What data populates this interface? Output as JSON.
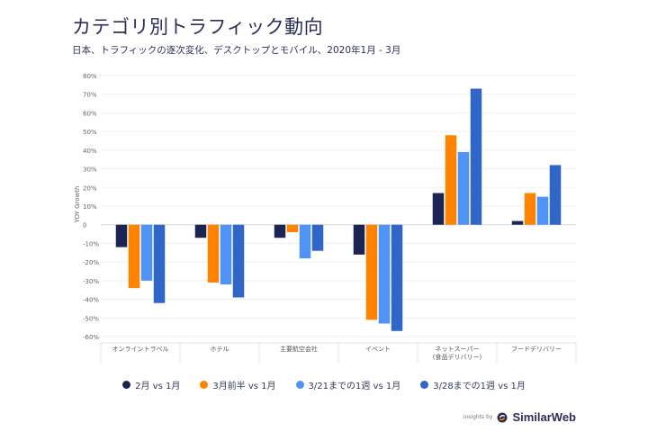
{
  "header": {
    "title": "カテゴリ別トラフィック動向",
    "subtitle": "日本、トラフィックの逐次変化、デスクトップとモバイル、2020年1月 - 3月"
  },
  "brand": {
    "prefix": "insights by",
    "name": "SimilarWeb",
    "logo_icon": "similarweb-logo-icon"
  },
  "chart_data": {
    "type": "bar",
    "title": "カテゴリ別トラフィック動向",
    "subtitle": "日本、トラフィックの逐次変化、デスクトップとモバイル、2020年1月 - 3月",
    "xlabel": "",
    "ylabel": "YOY Growth",
    "ylim": [
      -60,
      80
    ],
    "yticks": [
      80,
      70,
      60,
      50,
      40,
      30,
      20,
      10,
      0,
      -10,
      -20,
      -30,
      -40,
      -50,
      -60
    ],
    "ytick_labels": [
      "80%",
      "70%",
      "60%",
      "50%",
      "40%",
      "30%",
      "20%",
      "10%",
      "0",
      "-10%",
      "-20%",
      "-30%",
      "-40%",
      "-50%",
      "-60%"
    ],
    "grid": true,
    "legend_position": "bottom",
    "categories": [
      [
        "オンライントラベル"
      ],
      [
        "ホテル"
      ],
      [
        "主要航空会社"
      ],
      [
        "イベント"
      ],
      [
        "ネットスーパー",
        "(食品デリバリー)"
      ],
      [
        "フードデリバリー"
      ]
    ],
    "series": [
      {
        "name": "2月 vs 1月",
        "color": "#1b2452",
        "values": [
          -12,
          -7,
          -7,
          -16,
          17,
          2
        ]
      },
      {
        "name": "3月前半 vs 1月",
        "color": "#ff8300",
        "values": [
          -34,
          -31,
          -4,
          -51,
          48,
          17
        ]
      },
      {
        "name": "3/21までの1週 vs 1月",
        "color": "#4f93f7",
        "values": [
          -30,
          -32,
          -18,
          -53,
          39,
          15
        ]
      },
      {
        "name": "3/28までの1週 vs 1月",
        "color": "#3066c8",
        "values": [
          -42,
          -39,
          -14,
          -57,
          73,
          32
        ]
      }
    ]
  }
}
